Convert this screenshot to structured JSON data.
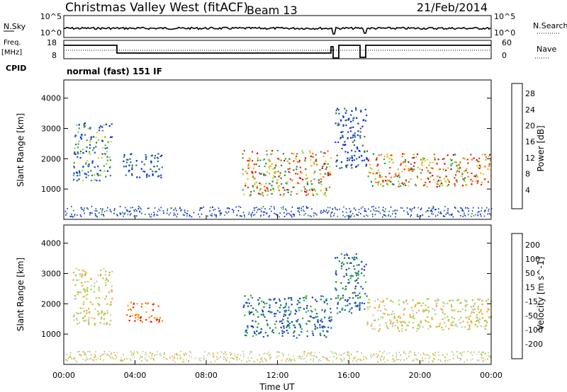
{
  "header": {
    "title": "Christmas Valley West (fitACF)",
    "beam": "Beam 13",
    "date": "21/Feb/2014"
  },
  "info_panels": {
    "nsky_label": "N.Sky",
    "nsky_ticks": [
      "10^5",
      "10^0"
    ],
    "nsearch_label": "N.Search",
    "nsearch_ticks": [
      "10^5",
      "10^0"
    ],
    "freq_label": "Freq.",
    "freq_unit": "[MHz]",
    "freq_ticks": [
      "18",
      "8"
    ],
    "nave_label": "Nave",
    "nave_ticks": [
      "60",
      "0"
    ],
    "cpid_label": "CPID",
    "cpid_text": "normal (fast) 151 IF"
  },
  "x_axis": {
    "label": "Time UT",
    "ticks": [
      "00:00",
      "04:00",
      "08:00",
      "12:00",
      "16:00",
      "20:00",
      "00:00"
    ]
  },
  "power_colorbar": {
    "label": "Power [dB]",
    "ticks": [
      "4",
      "8",
      "12",
      "16",
      "20",
      "24",
      "28"
    ],
    "colors": [
      "#0022ee",
      "#2244cc",
      "#2e7d4a",
      "#3fa06a",
      "#8cd63a",
      "#d8d82a",
      "#ffb000",
      "#ff6a00",
      "#ff2a00",
      "#e00000"
    ]
  },
  "velocity_colorbar": {
    "label": "Velocity [m s^-1]",
    "ticks": [
      "200",
      "100",
      "50",
      "15",
      "-15",
      "-50",
      "-100",
      "-200"
    ],
    "colors": [
      "#1030d0",
      "#1e5ab0",
      "#1f7e50",
      "#33b040",
      "#99dd55",
      "#c8c8c0",
      "#eeaa22",
      "#ff8800",
      "#ff5500",
      "#ee1100"
    ]
  },
  "chart_data": [
    {
      "type": "heatmap",
      "panel": "power",
      "xlabel": "Time UT",
      "ylabel": "Slant Range [km]",
      "xlim": [
        0,
        24
      ],
      "ylim": [
        0,
        4600
      ],
      "yticks": [
        1000,
        2000,
        3000,
        4000
      ],
      "scatter_patches": [
        {
          "t0": 0.5,
          "t1": 2.7,
          "r0": 1300,
          "r1": 3200,
          "level": "low-mid"
        },
        {
          "t0": 3.3,
          "t1": 5.5,
          "r0": 1400,
          "r1": 2200,
          "level": "low"
        },
        {
          "t0": 10.0,
          "t1": 15.0,
          "r0": 800,
          "r1": 2300,
          "level": "high"
        },
        {
          "t0": 15.2,
          "t1": 17.0,
          "r0": 1700,
          "r1": 3700,
          "level": "low"
        },
        {
          "t0": 17.0,
          "t1": 24.0,
          "r0": 1100,
          "r1": 2200,
          "level": "high"
        }
      ]
    },
    {
      "type": "heatmap",
      "panel": "velocity",
      "xlabel": "Time UT",
      "ylabel": "Slant Range [km]",
      "xlim": [
        0,
        24
      ],
      "ylim": [
        0,
        4600
      ],
      "yticks": [
        1000,
        2000,
        3000,
        4000
      ],
      "scatter_patches": [
        {
          "t0": 0.5,
          "t1": 2.7,
          "r0": 1300,
          "r1": 3200,
          "velocity": "near zero"
        },
        {
          "t0": 3.5,
          "t1": 5.5,
          "r0": 1400,
          "r1": 2100,
          "velocity": "negative"
        },
        {
          "t0": 10.0,
          "t1": 15.0,
          "r0": 900,
          "r1": 2300,
          "velocity": "positive"
        },
        {
          "t0": 15.2,
          "t1": 17.0,
          "r0": 1700,
          "r1": 3700,
          "velocity": "positive"
        },
        {
          "t0": 17.0,
          "t1": 24.0,
          "r0": 1100,
          "r1": 2200,
          "velocity": "near zero"
        }
      ]
    }
  ]
}
